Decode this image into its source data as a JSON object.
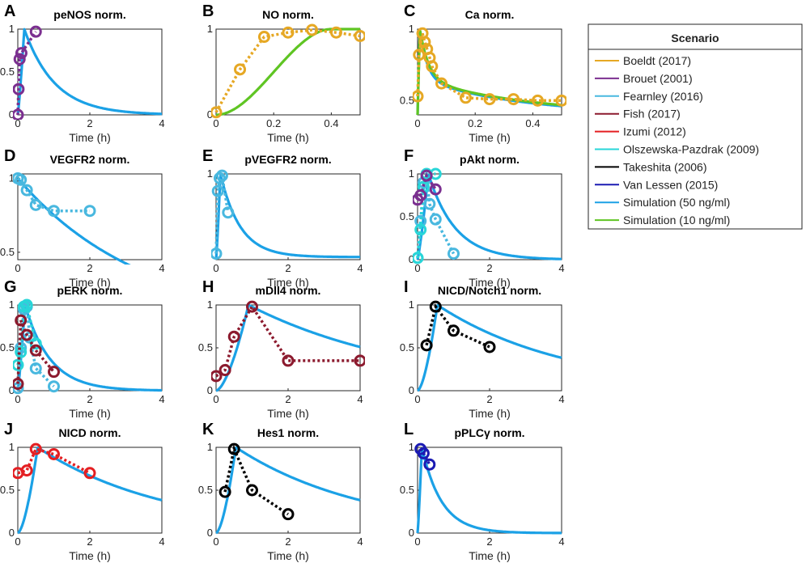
{
  "colors": {
    "Boeldt (2017)": "#e6a824",
    "Brouet (2001)": "#7b2f90",
    "Fearnley (2016)": "#49b8df",
    "Fish (2017)": "#8c1a2e",
    "Izumi (2012)": "#e41f22",
    "Olszewska-Pazdrak (2009)": "#28d6d8",
    "Takeshita (2006)": "#000000",
    "Van Lessen (2015)": "#1b1bb3",
    "Simulation (50 ng/ml)": "#1ba1e6",
    "Simulation (10 ng/ml)": "#5fc523"
  },
  "legend": {
    "title": "Scenario",
    "entries": [
      "Boeldt (2017)",
      "Brouet (2001)",
      "Fearnley (2016)",
      "Fish (2017)",
      "Izumi (2012)",
      "Olszewska-Pazdrak (2009)",
      "Takeshita (2006)",
      "Van Lessen (2015)",
      "Simulation (50 ng/ml)",
      "Simulation (10 ng/ml)"
    ]
  },
  "chart_data": [
    {
      "letter": "A",
      "type": "line",
      "title": "peNOS norm.",
      "xlabel": "Time (h)",
      "ylabel": "",
      "xlim": [
        0,
        4
      ],
      "ylim": [
        0,
        1
      ],
      "xticks": [
        0,
        2,
        4
      ],
      "yticks": [
        0,
        0.5,
        1
      ],
      "xticklabels": [
        "0",
        "2",
        "4"
      ],
      "yticklabels": [
        "0",
        "0.5",
        "1"
      ],
      "sims": [
        {
          "name": "Simulation (50 ng/ml)",
          "tpeak": 0.18,
          "tau": 0.85,
          "base": 0
        }
      ],
      "series": [
        {
          "name": "Brouet (2001)",
          "x": [
            0,
            0.02,
            0.05,
            0.1,
            0.5
          ],
          "y": [
            0,
            0.3,
            0.65,
            0.72,
            0.97
          ]
        }
      ]
    },
    {
      "letter": "B",
      "type": "line",
      "title": "NO norm.",
      "xlabel": "Time (h)",
      "ylabel": "",
      "xlim": [
        0,
        0.5
      ],
      "ylim": [
        0,
        1
      ],
      "xticks": [
        0,
        0.2,
        0.4
      ],
      "yticks": [
        0,
        1
      ],
      "xticklabels": [
        "0",
        "0.2",
        "0.4"
      ],
      "yticklabels": [
        "0",
        "1"
      ],
      "sims": [
        {
          "name": "Simulation (10 ng/ml)",
          "kind": "sigmoid",
          "ton": 0.05,
          "tfull": 0.4
        }
      ],
      "series": [
        {
          "name": "Boeldt (2017)",
          "x": [
            0,
            0.083,
            0.167,
            0.25,
            0.333,
            0.417,
            0.5
          ],
          "y": [
            0.03,
            0.53,
            0.91,
            0.96,
            0.99,
            0.96,
            0.92
          ]
        }
      ]
    },
    {
      "letter": "C",
      "type": "line",
      "title": "Ca norm.",
      "xlabel": "Time (h)",
      "ylabel": "",
      "xlim": [
        0,
        0.5
      ],
      "ylim": [
        0.4,
        1
      ],
      "xticks": [
        0,
        0.2,
        0.4
      ],
      "yticks": [
        0.5,
        1
      ],
      "xticklabels": [
        "0",
        "0.2",
        "0.4"
      ],
      "yticklabels": [
        "0.5",
        "1"
      ],
      "sims": [
        {
          "name": "Simulation (50 ng/ml)",
          "kind": "spike",
          "tpeak": 0.008,
          "fast": 0.025,
          "slow": 0.35,
          "base": 0.4,
          "amp": 0.25
        },
        {
          "name": "Simulation (10 ng/ml)",
          "kind": "spike",
          "tpeak": 0.008,
          "fast": 0.03,
          "slow": 0.38,
          "base": 0.4,
          "amp": 0.25
        }
      ],
      "series": [
        {
          "name": "Boeldt (2017)",
          "x": [
            0,
            0.005,
            0.017,
            0.025,
            0.033,
            0.042,
            0.05,
            0.083,
            0.167,
            0.25,
            0.333,
            0.417,
            0.5
          ],
          "y": [
            0.53,
            0.82,
            0.97,
            0.91,
            0.86,
            0.8,
            0.74,
            0.62,
            0.52,
            0.51,
            0.51,
            0.5,
            0.5
          ]
        }
      ]
    },
    {
      "letter": "D",
      "type": "line",
      "title": "VEGFR2 norm.",
      "xlabel": "Time (h)",
      "ylabel": "",
      "xlim": [
        0,
        4
      ],
      "ylim": [
        0.45,
        1.03
      ],
      "xticks": [
        0,
        2,
        4
      ],
      "yticks": [
        0.5,
        1
      ],
      "xticklabels": [
        "0",
        "2",
        "4"
      ],
      "yticklabels": [
        "0.5",
        "1"
      ],
      "sims": [
        {
          "name": "Simulation (50 ng/ml)",
          "kind": "decay",
          "tau": 3.5
        }
      ],
      "series": [
        {
          "name": "Fearnley (2016)",
          "x": [
            0,
            0.083,
            0.25,
            0.5,
            1,
            2
          ],
          "y": [
            1,
            0.99,
            0.92,
            0.82,
            0.78,
            0.78
          ]
        }
      ]
    },
    {
      "letter": "E",
      "type": "line",
      "title": "pVEGFR2 norm.",
      "xlabel": "Time (h)",
      "ylabel": "",
      "xlim": [
        0,
        4
      ],
      "ylim": [
        0,
        1
      ],
      "xticks": [
        0,
        2,
        4
      ],
      "yticks": [
        1
      ],
      "xticklabels": [
        "0",
        "2",
        "4"
      ],
      "yticklabels": [
        "1"
      ],
      "sims": [
        {
          "name": "Simulation (50 ng/ml)",
          "tpeak": 0.12,
          "tau": 0.55,
          "base": 0.03
        }
      ],
      "series": [
        {
          "name": "Fearnley (2016)",
          "x": [
            0,
            0.05,
            0.1,
            0.167,
            0.333
          ],
          "y": [
            0.07,
            0.8,
            0.95,
            0.98,
            0.55
          ]
        }
      ]
    },
    {
      "letter": "F",
      "type": "line",
      "title": "pAkt norm.",
      "xlabel": "Time (h)",
      "ylabel": "",
      "xlim": [
        0,
        4
      ],
      "ylim": [
        0,
        1
      ],
      "xticks": [
        0,
        2,
        4
      ],
      "yticks": [
        0,
        0.5,
        1
      ],
      "xticklabels": [
        "0",
        "2",
        "4"
      ],
      "yticklabels": [
        "0",
        "0.5",
        "1"
      ],
      "sims": [
        {
          "name": "Simulation (50 ng/ml)",
          "tpeak": 0.3,
          "tau": 0.75,
          "base": 0
        }
      ],
      "series": [
        {
          "name": "Fearnley (2016)",
          "x": [
            0,
            0.083,
            0.167,
            0.25,
            0.333,
            0.5,
            1
          ],
          "y": [
            0.02,
            0.45,
            0.9,
            0.98,
            0.65,
            0.47,
            0.07
          ]
        },
        {
          "name": "Olszewska-Pazdrak (2009)",
          "x": [
            0,
            0.083,
            0.167,
            0.25,
            0.5
          ],
          "y": [
            0.02,
            0.35,
            0.85,
            1,
            1
          ]
        },
        {
          "name": "Brouet (2001)",
          "x": [
            0,
            0.083,
            0.25,
            0.5
          ],
          "y": [
            0.7,
            0.75,
            0.98,
            0.82
          ]
        }
      ]
    },
    {
      "letter": "G",
      "type": "line",
      "title": "pERK norm.",
      "xlabel": "Time (h)",
      "ylabel": "",
      "xlim": [
        0,
        4
      ],
      "ylim": [
        0,
        1
      ],
      "xticks": [
        0,
        2,
        4
      ],
      "yticks": [
        0,
        0.5,
        1
      ],
      "xticklabels": [
        "0",
        "2",
        "4"
      ],
      "yticklabels": [
        "0",
        "0.5",
        "1"
      ],
      "sims": [
        {
          "name": "Simulation (50 ng/ml)",
          "tpeak": 0.2,
          "tau": 0.7,
          "base": 0
        }
      ],
      "series": [
        {
          "name": "Fearnley (2016)",
          "x": [
            0,
            0.083,
            0.167,
            0.25,
            0.333,
            0.5,
            1
          ],
          "y": [
            0.03,
            0.5,
            0.95,
            0.98,
            0.62,
            0.26,
            0.05
          ]
        },
        {
          "name": "Olszewska-Pazdrak (2009)",
          "x": [
            0,
            0.083,
            0.167,
            0.25,
            0.5
          ],
          "y": [
            0.3,
            0.45,
            0.98,
            1,
            0.55
          ]
        },
        {
          "name": "Fish (2017)",
          "x": [
            0,
            0.083,
            0.25,
            0.5,
            1
          ],
          "y": [
            0.08,
            0.82,
            0.65,
            0.47,
            0.22
          ]
        }
      ]
    },
    {
      "letter": "H",
      "type": "line",
      "title": "mDll4 norm.",
      "xlabel": "Time (h)",
      "ylabel": "",
      "xlim": [
        0,
        4
      ],
      "ylim": [
        0,
        1
      ],
      "xticks": [
        0,
        2,
        4
      ],
      "yticks": [
        0,
        0.5,
        1
      ],
      "xticklabels": [
        "0",
        "2",
        "4"
      ],
      "yticklabels": [
        "0",
        "0.5",
        "1"
      ],
      "sims": [
        {
          "name": "Simulation (50 ng/ml)",
          "tpeak": 0.9,
          "tau": 4.6,
          "base": 0,
          "kind": "slow"
        }
      ],
      "series": [
        {
          "name": "Fish (2017)",
          "x": [
            0,
            0.25,
            0.5,
            1,
            2,
            4
          ],
          "y": [
            0.17,
            0.24,
            0.63,
            0.98,
            0.35,
            0.35
          ]
        }
      ]
    },
    {
      "letter": "I",
      "type": "line",
      "title": "NICD/Notch1 norm.",
      "xlabel": "Time (h)",
      "ylabel": "",
      "xlim": [
        0,
        4
      ],
      "ylim": [
        0,
        1
      ],
      "xticks": [
        0,
        2,
        4
      ],
      "yticks": [
        0,
        0.5,
        1
      ],
      "xticklabels": [
        "0",
        "2",
        "4"
      ],
      "yticklabels": [
        "0",
        "0.5",
        "1"
      ],
      "sims": [
        {
          "name": "Simulation (50 ng/ml)",
          "tpeak": 0.55,
          "tau": 3.6,
          "base": 0,
          "kind": "slow"
        }
      ],
      "series": [
        {
          "name": "Takeshita (2006)",
          "x": [
            0.25,
            0.5,
            1,
            2
          ],
          "y": [
            0.53,
            0.98,
            0.7,
            0.51
          ]
        }
      ]
    },
    {
      "letter": "J",
      "type": "line",
      "title": "NICD norm.",
      "xlabel": "Time (h)",
      "ylabel": "",
      "xlim": [
        0,
        4
      ],
      "ylim": [
        0,
        1
      ],
      "xticks": [
        0,
        2,
        4
      ],
      "yticks": [
        0,
        0.5,
        1
      ],
      "xticklabels": [
        "0",
        "2",
        "4"
      ],
      "yticklabels": [
        "0",
        "0.5",
        "1"
      ],
      "sims": [
        {
          "name": "Simulation (50 ng/ml)",
          "tpeak": 0.55,
          "tau": 3.6,
          "base": 0,
          "kind": "slow"
        }
      ],
      "series": [
        {
          "name": "Izumi (2012)",
          "x": [
            0,
            0.25,
            0.5,
            1,
            2
          ],
          "y": [
            0.7,
            0.73,
            0.98,
            0.92,
            0.7
          ]
        }
      ]
    },
    {
      "letter": "K",
      "type": "line",
      "title": "Hes1 norm.",
      "xlabel": "Time (h)",
      "ylabel": "",
      "xlim": [
        0,
        4
      ],
      "ylim": [
        0,
        1
      ],
      "xticks": [
        0,
        2,
        4
      ],
      "yticks": [
        0,
        0.5,
        1
      ],
      "xticklabels": [
        "0",
        "2",
        "4"
      ],
      "yticklabels": [
        "0",
        "0.5",
        "1"
      ],
      "sims": [
        {
          "name": "Simulation (50 ng/ml)",
          "tpeak": 0.55,
          "tau": 3.6,
          "base": 0,
          "kind": "slow"
        }
      ],
      "series": [
        {
          "name": "Takeshita (2006)",
          "x": [
            0.25,
            0.5,
            1,
            2
          ],
          "y": [
            0.48,
            0.98,
            0.5,
            0.22
          ]
        }
      ]
    },
    {
      "letter": "L",
      "type": "line",
      "title": "pPLCγ norm.",
      "xlabel": "Time (h)",
      "ylabel": "",
      "xlim": [
        0,
        4
      ],
      "ylim": [
        0,
        1
      ],
      "xticks": [
        0,
        2,
        4
      ],
      "yticks": [
        0,
        0.5,
        1
      ],
      "xticklabels": [
        "0",
        "2",
        "4"
      ],
      "yticklabels": [
        "0",
        "0.5",
        "1"
      ],
      "sims": [
        {
          "name": "Simulation (50 ng/ml)",
          "tpeak": 0.12,
          "tau": 0.55,
          "base": 0
        }
      ],
      "series": [
        {
          "name": "Van Lessen (2015)",
          "x": [
            0.083,
            0.167,
            0.333
          ],
          "y": [
            0.98,
            0.93,
            0.8
          ]
        }
      ]
    }
  ]
}
